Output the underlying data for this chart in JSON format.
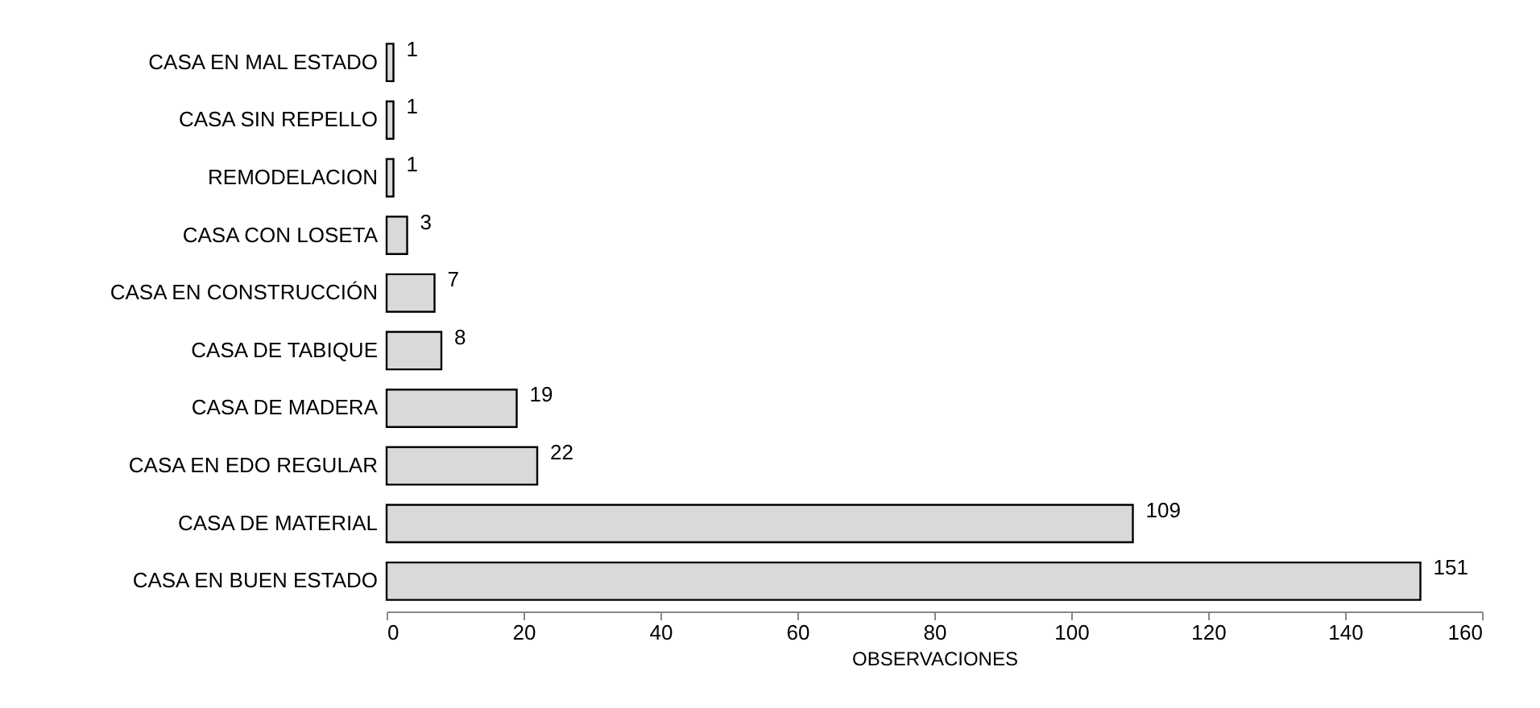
{
  "chart_data": {
    "type": "bar",
    "orientation": "horizontal",
    "xlabel": "OBSERVACIONES",
    "categories": [
      "CASA EN MAL ESTADO",
      "CASA SIN REPELLO",
      "REMODELACION",
      "CASA CON LOSETA",
      "CASA EN CONSTRUCCIÓN",
      "CASA DE TABIQUE",
      "CASA DE MADERA",
      "CASA EN EDO REGULAR",
      "CASA DE MATERIAL",
      "CASA EN BUEN ESTADO"
    ],
    "values": [
      1,
      1,
      1,
      3,
      7,
      8,
      19,
      22,
      109,
      151
    ],
    "color": "#d9d9d9",
    "xlim": [
      0,
      160
    ],
    "xticks": [
      0,
      20,
      40,
      60,
      80,
      100,
      120,
      140,
      160
    ],
    "data_labels": true,
    "grid": false
  }
}
